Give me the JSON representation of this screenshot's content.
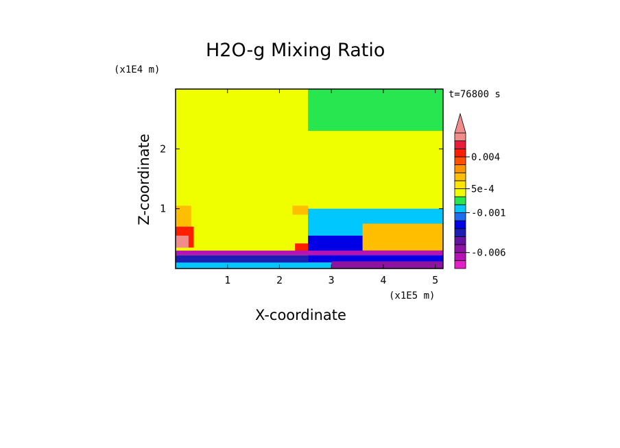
{
  "chart_data": {
    "type": "heatmap",
    "title": "H2O-g Mixing Ratio",
    "xlabel": "X-coordinate",
    "ylabel": "Z-coordinate",
    "x_unit": "(x1E5 m)",
    "y_unit": "(x1E4 m)",
    "time_label": "t=76800 s",
    "xlim": [
      0,
      5.15
    ],
    "ylim": [
      0,
      3.0
    ],
    "x_ticks": [
      {
        "value": 1,
        "label": "1"
      },
      {
        "value": 2,
        "label": "2"
      },
      {
        "value": 3,
        "label": "3"
      },
      {
        "value": 4,
        "label": "4"
      },
      {
        "value": 5,
        "label": "5"
      }
    ],
    "y_ticks": [
      {
        "value": 1,
        "label": "1"
      },
      {
        "value": 2,
        "label": "2"
      }
    ],
    "colorbar": {
      "levels": [
        -0.008,
        -0.007,
        -0.006,
        -0.005,
        -0.004,
        -0.003,
        -0.002,
        -0.001,
        -0.0005,
        0,
        0.0005,
        0.001,
        0.002,
        0.003,
        0.004,
        0.005,
        0.006
      ],
      "colors": [
        "#e61ec8",
        "#b414b4",
        "#8c14a0",
        "#6414a0",
        "#1e1eb4",
        "#0000e6",
        "#1e6ef0",
        "#00c8ff",
        "#28e650",
        "#f0ff00",
        "#ffe600",
        "#ffbe00",
        "#ff9600",
        "#ff5000",
        "#ff1e00",
        "#e61e3c",
        "#f08c8c"
      ],
      "labels": [
        {
          "value": 0.004,
          "text": "0.004"
        },
        {
          "value": 0.0005,
          "text": "5e-4"
        },
        {
          "value": -0.001,
          "text": "-0.001"
        },
        {
          "value": -0.006,
          "text": "-0.006"
        }
      ],
      "extend": "max"
    },
    "regions": [
      {
        "color": "#f0ff00",
        "x": [
          0,
          2.55
        ],
        "z": [
          0.3,
          3.0
        ]
      },
      {
        "color": "#f0ff00",
        "x": [
          2.55,
          5.15
        ],
        "z": [
          1.0,
          1.45
        ]
      },
      {
        "color": "#28e650",
        "x": [
          2.55,
          5.15
        ],
        "z": [
          2.3,
          3.0
        ]
      },
      {
        "color": "#f0ff00",
        "x": [
          2.55,
          5.15
        ],
        "z": [
          1.45,
          2.3
        ]
      },
      {
        "color": "#f0ff00",
        "x": [
          0,
          0.15
        ],
        "z": [
          0.3,
          1.05
        ]
      },
      {
        "color": "#ffbe00",
        "x": [
          0,
          0.3
        ],
        "z": [
          0.6,
          1.05
        ]
      },
      {
        "color": "#ff1e00",
        "x": [
          0,
          0.35
        ],
        "z": [
          0.35,
          0.7
        ]
      },
      {
        "color": "#f08c8c",
        "x": [
          0,
          0.25
        ],
        "z": [
          0.35,
          0.55
        ]
      },
      {
        "color": "#ffbe00",
        "x": [
          2.25,
          2.55
        ],
        "z": [
          0.9,
          1.05
        ]
      },
      {
        "color": "#ff1e00",
        "x": [
          2.3,
          2.55
        ],
        "z": [
          0.28,
          0.42
        ]
      },
      {
        "color": "#00c8ff",
        "x": [
          2.55,
          5.15
        ],
        "z": [
          0.55,
          1.0
        ]
      },
      {
        "color": "#0000e6",
        "x": [
          2.55,
          5.15
        ],
        "z": [
          0.1,
          0.55
        ]
      },
      {
        "color": "#ffbe00",
        "x": [
          3.6,
          5.15
        ],
        "z": [
          0.3,
          0.75
        ]
      },
      {
        "color": "#b414b4",
        "x": [
          0,
          5.15
        ],
        "z": [
          0.22,
          0.3
        ]
      },
      {
        "color": "#1e1eb4",
        "x": [
          0,
          2.55
        ],
        "z": [
          0.0,
          0.22
        ]
      },
      {
        "color": "#00c8ff",
        "x": [
          0,
          5.15
        ],
        "z": [
          0.0,
          0.1
        ]
      },
      {
        "color": "#8c14a0",
        "x": [
          3.0,
          5.15
        ],
        "z": [
          0.0,
          0.12
        ]
      }
    ]
  }
}
